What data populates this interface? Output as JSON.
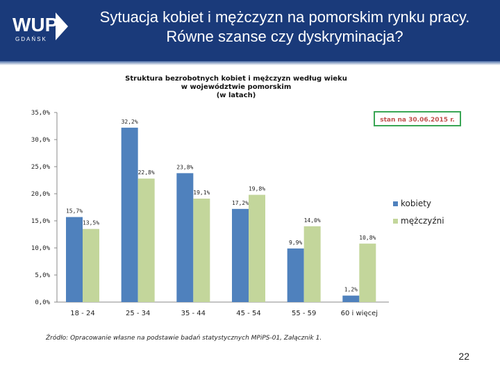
{
  "slide": {
    "logo_text": "WUP",
    "logo_subtext": "GDAŃSK",
    "title_line1": "Sytuacja kobiet i mężczyzn na pomorskim rynku pracy.",
    "title_line2": "Równe szanse czy dyskryminacja?",
    "source": "Źródło: Opracowanie własne na podstawie badań statystycznych MPiPS-01, Załącznik 1.",
    "page_number": "22",
    "colors": {
      "header": "#1a3a7a",
      "kobiety": "#4f81bd",
      "mezczyzni": "#c3d69b",
      "stamp_border": "#3aa655",
      "stamp_text": "#c0504d"
    }
  },
  "chart_data": {
    "type": "bar",
    "title_lines": [
      "Struktura bezrobotnych kobiet i mężczyzn według wieku",
      "w województwie pomorskim",
      "(w latach)"
    ],
    "annotation": "stan na 30.06.2015 r.",
    "categories": [
      "18 - 24",
      "25 - 34",
      "35 - 44",
      "45 - 54",
      "55 - 59",
      "60 i więcej"
    ],
    "series": [
      {
        "name": "kobiety",
        "values": [
          15.7,
          32.2,
          23.8,
          17.2,
          9.9,
          1.2
        ],
        "labels": [
          "15,7%",
          "32,2%",
          "23,8%",
          "17,2%",
          "9,9%",
          "1,2%"
        ]
      },
      {
        "name": "mężczyźni",
        "values": [
          13.5,
          22.8,
          19.1,
          19.8,
          14.0,
          10.8
        ],
        "labels": [
          "13,5%",
          "22,8%",
          "19,1%",
          "19,8%",
          "14,0%",
          "10,8%"
        ]
      }
    ],
    "yticks": [
      "0,0%",
      "5,0%",
      "10,0%",
      "15,0%",
      "20,0%",
      "25,0%",
      "30,0%",
      "35,0%"
    ],
    "ylim": [
      0,
      35
    ],
    "legend_position": "right",
    "grid": false
  }
}
